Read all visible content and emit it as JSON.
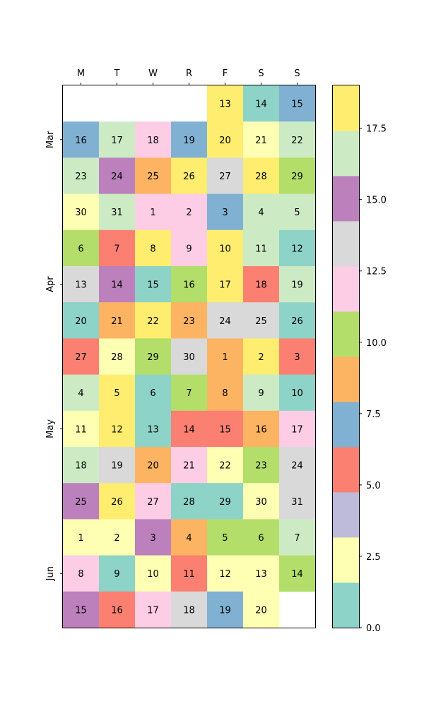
{
  "chart_data": {
    "type": "heatmap",
    "weekday_labels": [
      "M",
      "T",
      "W",
      "R",
      "F",
      "S",
      "S"
    ],
    "month_labels": [
      {
        "label": "Mar",
        "row": 1
      },
      {
        "label": "Apr",
        "row": 5
      },
      {
        "label": "May",
        "row": 9
      },
      {
        "label": "Jun",
        "row": 13
      }
    ],
    "rows": [
      {
        "days": [
          null,
          null,
          null,
          null,
          13,
          14,
          15
        ],
        "values": [
          null,
          null,
          null,
          null,
          18,
          0,
          7
        ]
      },
      {
        "days": [
          16,
          17,
          18,
          19,
          20,
          21,
          22
        ],
        "values": [
          7,
          17,
          12,
          7,
          18,
          3,
          17
        ]
      },
      {
        "days": [
          23,
          24,
          25,
          26,
          27,
          28,
          29
        ],
        "values": [
          17,
          15,
          9,
          18,
          13,
          18,
          10
        ]
      },
      {
        "days": [
          30,
          31,
          1,
          2,
          3,
          4,
          5
        ],
        "values": [
          2,
          17,
          12,
          12,
          7,
          17,
          17
        ]
      },
      {
        "days": [
          6,
          7,
          8,
          9,
          10,
          11,
          12
        ],
        "values": [
          10,
          5,
          18,
          12,
          18,
          17,
          0
        ]
      },
      {
        "days": [
          13,
          14,
          15,
          16,
          17,
          18,
          19
        ],
        "values": [
          13,
          15,
          0,
          10,
          18,
          5,
          17
        ]
      },
      {
        "days": [
          20,
          21,
          22,
          23,
          24,
          25,
          26
        ],
        "values": [
          0,
          9,
          18,
          9,
          13,
          13,
          0
        ]
      },
      {
        "days": [
          27,
          28,
          29,
          30,
          1,
          2,
          3
        ],
        "values": [
          5,
          2,
          10,
          13,
          9,
          18,
          5
        ]
      },
      {
        "days": [
          4,
          5,
          6,
          7,
          8,
          9,
          10
        ],
        "values": [
          17,
          18,
          0,
          10,
          9,
          17,
          0
        ]
      },
      {
        "days": [
          11,
          12,
          13,
          14,
          15,
          16,
          17
        ],
        "values": [
          3,
          18,
          0,
          5,
          5,
          9,
          12
        ]
      },
      {
        "days": [
          18,
          19,
          20,
          21,
          22,
          23,
          24
        ],
        "values": [
          17,
          13,
          9,
          12,
          3,
          10,
          13
        ]
      },
      {
        "days": [
          25,
          26,
          27,
          28,
          29,
          30,
          31
        ],
        "values": [
          15,
          18,
          12,
          0,
          0,
          2,
          13
        ]
      },
      {
        "days": [
          1,
          2,
          3,
          4,
          5,
          6,
          7
        ],
        "values": [
          3,
          2,
          15,
          9,
          10,
          10,
          17
        ]
      },
      {
        "days": [
          8,
          9,
          10,
          11,
          12,
          13,
          14
        ],
        "values": [
          12,
          0,
          2,
          5,
          3,
          3,
          10
        ]
      },
      {
        "days": [
          15,
          16,
          17,
          18,
          19,
          20,
          null
        ],
        "values": [
          15,
          5,
          12,
          13,
          7,
          2,
          null
        ]
      }
    ],
    "colorbar": {
      "min": 0.0,
      "max": 19.0,
      "ticks": [
        0.0,
        2.5,
        5.0,
        7.5,
        10.0,
        12.5,
        15.0,
        17.5
      ],
      "tick_labels": [
        "0.0",
        "2.5",
        "5.0",
        "7.5",
        "10.0",
        "12.5",
        "15.0",
        "17.5"
      ],
      "colors": [
        "#8dd3c7",
        "#ffffb3",
        "#bebada",
        "#fb8072",
        "#80b1d3",
        "#fdb462",
        "#b3de69",
        "#fccde5",
        "#d9d9d9",
        "#bc80bd",
        "#ccebc5",
        "#ffed6f"
      ]
    }
  }
}
